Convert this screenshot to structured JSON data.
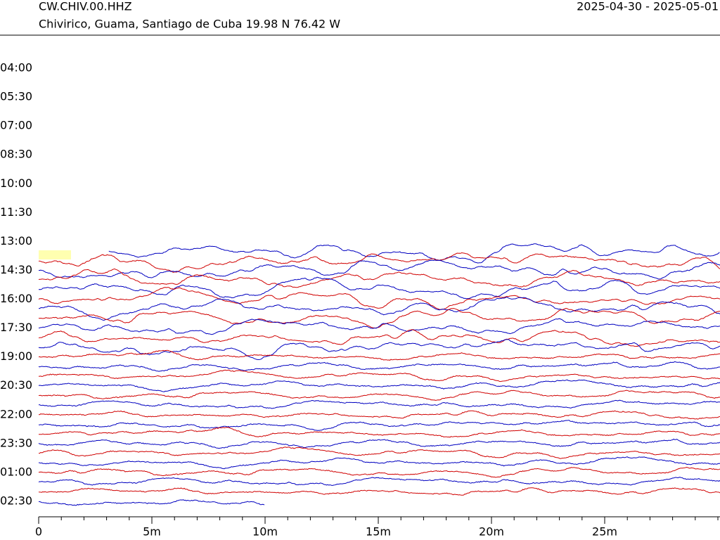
{
  "chart_data": {
    "type": "helicorder",
    "title": "CW.CHIV.00.HHZ",
    "subtitle": "Chivirico, Guama, Santiago de Cuba  19.98 N 76.42 W",
    "date_range": "2025-04-30 - 2025-05-01",
    "row_labels": [
      "04:00",
      "05:30",
      "07:00",
      "08:30",
      "10:00",
      "11:30",
      "13:00",
      "14:30",
      "16:00",
      "17:30",
      "19:00",
      "20:30",
      "22:00",
      "23:30",
      "01:00",
      "02:30"
    ],
    "xlim": [
      0,
      30
    ],
    "xticks": [
      {
        "value": 0,
        "label": "0"
      },
      {
        "value": 5,
        "label": "5m"
      },
      {
        "value": 10,
        "label": "10m"
      },
      {
        "value": 15,
        "label": "15m"
      },
      {
        "value": 20,
        "label": "20m"
      },
      {
        "value": 25,
        "label": "25m"
      }
    ],
    "trace_colors": [
      "#0000c0",
      "#d00000"
    ]
  }
}
